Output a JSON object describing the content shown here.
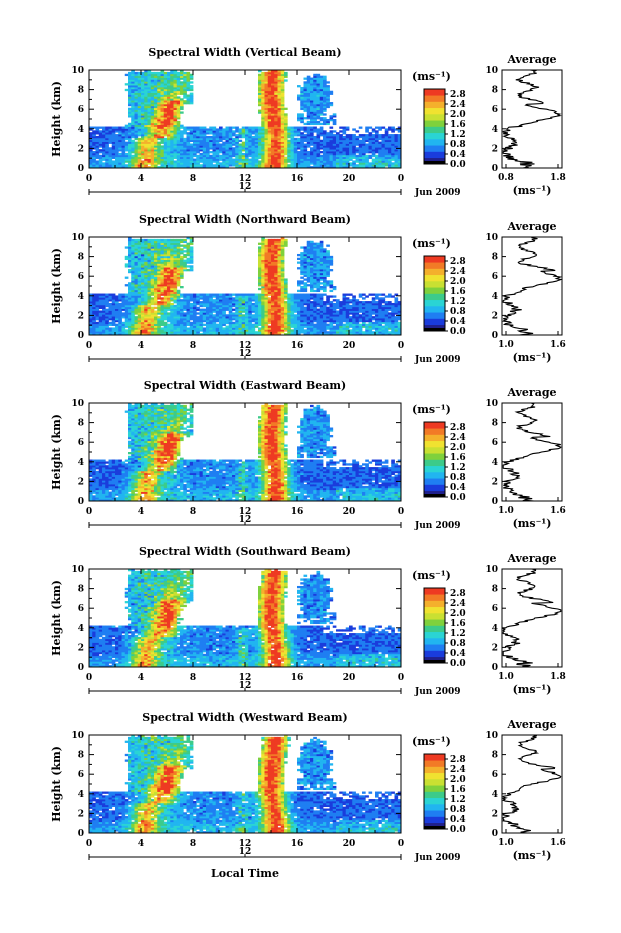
{
  "colors": {
    "scale": [
      "#20208c",
      "#1a3cdc",
      "#1f7ef2",
      "#21b5f0",
      "#2ad4d4",
      "#3ccb8a",
      "#7fd13c",
      "#c9e032",
      "#f0e230",
      "#f4b02c",
      "#f27a26",
      "#ee3a22"
    ],
    "line": "#000000"
  },
  "chart_data": [
    {
      "type": "heatmap",
      "title": "Spectral Width (Vertical Beam)",
      "ylabel": "Height (km)",
      "xlim": [
        0,
        24
      ],
      "ylim": [
        0,
        10
      ],
      "xticks": [
        "0",
        "4",
        "8",
        "12",
        "16",
        "20",
        "0"
      ],
      "yticks": [
        "0",
        "2",
        "4",
        "6",
        "8",
        "10"
      ],
      "date_tick": "12",
      "date_label": "Jun 2009",
      "colorbar": {
        "unit": "(ms⁻¹)",
        "ticks": [
          "0.0",
          "0.4",
          "0.8",
          "1.2",
          "1.6",
          "2.0",
          "2.4",
          "2.8"
        ],
        "range": [
          0,
          3
        ]
      },
      "average": {
        "title": "Average",
        "xticks": [
          "0.8",
          "1.8"
        ],
        "xlim": [
          0.8,
          1.8
        ],
        "xlabel": "(ms⁻¹)",
        "peak_height": 5.5
      }
    },
    {
      "type": "heatmap",
      "title": "Spectral Width (Northward Beam)",
      "ylabel": "Height (km)",
      "xlim": [
        0,
        24
      ],
      "ylim": [
        0,
        10
      ],
      "xticks": [
        "0",
        "4",
        "8",
        "12",
        "16",
        "20",
        "0"
      ],
      "yticks": [
        "0",
        "2",
        "4",
        "6",
        "8",
        "10"
      ],
      "date_tick": "12",
      "date_label": "Jun 2009",
      "colorbar": {
        "unit": "(ms⁻¹)",
        "ticks": [
          "0.0",
          "0.4",
          "0.8",
          "1.2",
          "1.6",
          "2.0",
          "2.4",
          "2.8"
        ],
        "range": [
          0,
          3
        ]
      },
      "average": {
        "title": "Average",
        "xticks": [
          "1.0",
          "1.6"
        ],
        "xlim": [
          1.0,
          1.6
        ],
        "xlabel": "(ms⁻¹)",
        "peak_height": 5.8
      }
    },
    {
      "type": "heatmap",
      "title": "Spectral Width (Eastward Beam)",
      "ylabel": "Height (km)",
      "xlim": [
        0,
        24
      ],
      "ylim": [
        0,
        10
      ],
      "xticks": [
        "0",
        "4",
        "8",
        "12",
        "16",
        "20",
        "0"
      ],
      "yticks": [
        "0",
        "2",
        "4",
        "6",
        "8",
        "10"
      ],
      "date_tick": "12",
      "date_label": "Jun 2009",
      "colorbar": {
        "unit": "(ms⁻¹)",
        "ticks": [
          "0.0",
          "0.4",
          "0.8",
          "1.2",
          "1.6",
          "2.0",
          "2.4",
          "2.8"
        ],
        "range": [
          0,
          3
        ]
      },
      "average": {
        "title": "Average",
        "xticks": [
          "1.0",
          "1.6"
        ],
        "xlim": [
          1.0,
          1.6
        ],
        "xlabel": "(ms⁻¹)",
        "peak_height": 5.6
      }
    },
    {
      "type": "heatmap",
      "title": "Spectral Width (Southward Beam)",
      "ylabel": "Height (km)",
      "xlim": [
        0,
        24
      ],
      "ylim": [
        0,
        10
      ],
      "xticks": [
        "0",
        "4",
        "8",
        "12",
        "16",
        "20",
        "0"
      ],
      "yticks": [
        "0",
        "2",
        "4",
        "6",
        "8",
        "10"
      ],
      "date_tick": "12",
      "date_label": "Jun 2009",
      "colorbar": {
        "unit": "(ms⁻¹)",
        "ticks": [
          "0.0",
          "0.4",
          "0.8",
          "1.2",
          "1.6",
          "2.0",
          "2.4",
          "2.8"
        ],
        "range": [
          0,
          3
        ]
      },
      "average": {
        "title": "Average",
        "xticks": [
          "1.0",
          "1.8"
        ],
        "xlim": [
          1.0,
          1.8
        ],
        "xlabel": "(ms⁻¹)",
        "peak_height": 5.7
      }
    },
    {
      "type": "heatmap",
      "title": "Spectral Width (Westward Beam)",
      "ylabel": "Height (km)",
      "xlabel": "Local Time",
      "xlim": [
        0,
        24
      ],
      "ylim": [
        0,
        10
      ],
      "xticks": [
        "0",
        "4",
        "8",
        "12",
        "16",
        "20",
        "0"
      ],
      "yticks": [
        "0",
        "2",
        "4",
        "6",
        "8",
        "10"
      ],
      "date_tick": "12",
      "date_label": "Jun 2009",
      "colorbar": {
        "unit": "(ms⁻¹)",
        "ticks": [
          "0.0",
          "0.4",
          "0.8",
          "1.2",
          "1.6",
          "2.0",
          "2.4",
          "2.8"
        ],
        "range": [
          0,
          3
        ]
      },
      "average": {
        "title": "Average",
        "xticks": [
          "1.0",
          "1.6"
        ],
        "xlim": [
          1.0,
          1.6
        ],
        "xlabel": "(ms⁻¹)",
        "peak_height": 5.8
      }
    }
  ]
}
